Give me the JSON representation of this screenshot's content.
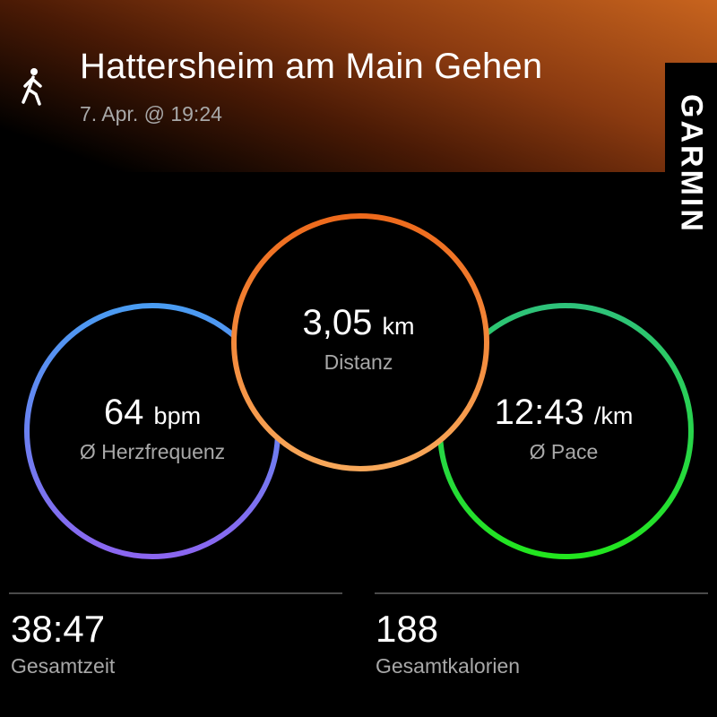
{
  "header": {
    "activity_icon": "walking-person-icon",
    "title": "Hattersheim am Main Gehen",
    "date": "7. Apr. @ 19:24",
    "brand": "GARMIN"
  },
  "metrics": {
    "heart_rate": {
      "value": "64",
      "unit": "bpm",
      "label": "Ø Herzfrequenz",
      "colors": [
        "#4a9cf2",
        "#8b66f0"
      ]
    },
    "distance": {
      "value": "3,05",
      "unit": "km",
      "label": "Distanz",
      "colors": [
        "#ee6a1c",
        "#f8a85a"
      ]
    },
    "pace": {
      "value": "12:43",
      "unit": "/km",
      "label": "Ø Pace",
      "colors": [
        "#2ec27a",
        "#22e61e"
      ]
    }
  },
  "stats": [
    {
      "value": "38:47",
      "label": "Gesamtzeit"
    },
    {
      "value": "188",
      "label": "Gesamtkalorien"
    }
  ]
}
